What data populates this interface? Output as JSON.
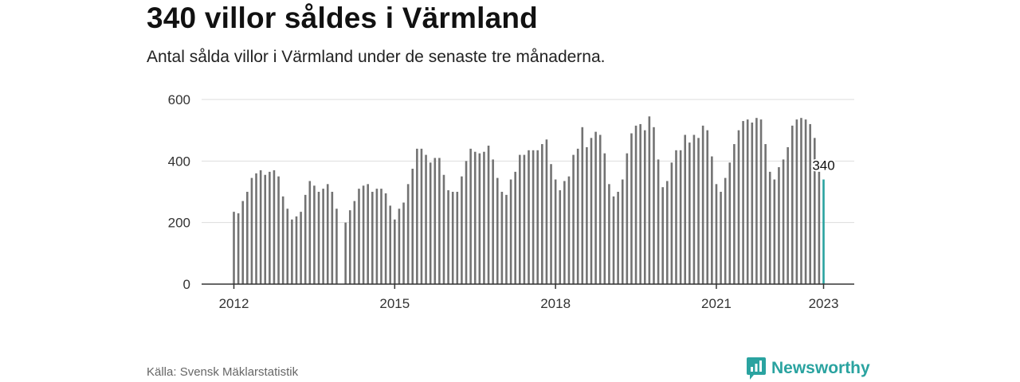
{
  "header": {
    "title": "340 villor såldes i Värmland",
    "subtitle": "Antal sålda villor i Värmland under de senaste tre månaderna."
  },
  "footer": {
    "source": "Källa: Svensk Mäklarstatistik",
    "brand": "Newsworthy",
    "brand_icon": "newsworthy-logo-icon"
  },
  "colors": {
    "bar": "#737373",
    "highlight": "#2aa3a0",
    "grid": "#dddddd",
    "axis": "#333333"
  },
  "chart_data": {
    "type": "bar",
    "title": "340 villor såldes i Värmland",
    "subtitle": "Antal sålda villor i Värmland under de senaste tre månaderna.",
    "xlabel": "",
    "ylabel": "",
    "ylim": [
      0,
      600
    ],
    "yticks": [
      0,
      200,
      400,
      600
    ],
    "xticks": [
      "2012",
      "2015",
      "2018",
      "2021",
      "2023"
    ],
    "grid": true,
    "legend": "none",
    "highlight_label": "340",
    "series": [
      {
        "values": [
          235,
          230,
          270,
          300,
          345,
          360,
          370,
          355,
          365,
          370,
          350,
          285,
          245,
          210,
          220,
          235,
          290,
          335,
          320,
          300,
          310,
          325,
          300,
          245,
          null,
          200,
          240,
          270,
          310,
          320,
          325,
          300,
          310,
          310,
          295,
          255,
          210,
          245,
          265,
          325,
          375,
          440,
          440,
          420,
          395,
          410,
          410,
          355,
          305,
          300,
          300,
          350,
          400,
          440,
          430,
          425,
          430,
          450,
          405,
          345,
          300,
          290,
          340,
          365,
          420,
          420,
          435,
          435,
          435,
          455,
          470,
          390,
          340,
          305,
          335,
          350,
          420,
          440,
          510,
          445,
          475,
          495,
          485,
          425,
          325,
          285,
          300,
          340,
          425,
          490,
          515,
          520,
          500,
          545,
          510,
          405,
          315,
          335,
          395,
          435,
          435,
          485,
          460,
          485,
          475,
          515,
          500,
          415,
          325,
          300,
          345,
          395,
          455,
          500,
          530,
          535,
          525,
          540,
          535,
          455,
          365,
          340,
          380,
          405,
          445,
          515,
          535,
          540,
          535,
          520,
          475,
          365,
          340
        ]
      }
    ]
  }
}
